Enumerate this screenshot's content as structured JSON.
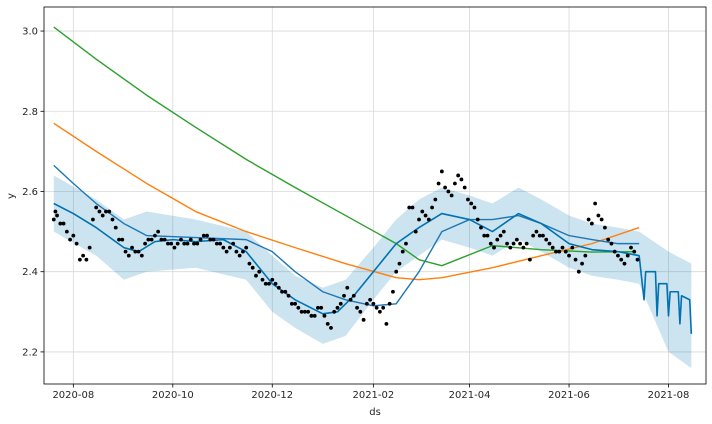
{
  "chart_data": {
    "type": "line",
    "title": "",
    "xlabel": "ds",
    "ylabel": "y",
    "x_range": [
      "2020-07-14",
      "2021-08-24"
    ],
    "ylim": [
      2.12,
      3.06
    ],
    "x_ticks": [
      {
        "date": "2020-08-01",
        "label": "2020-08"
      },
      {
        "date": "2020-10-01",
        "label": "2020-10"
      },
      {
        "date": "2020-12-01",
        "label": "2020-12"
      },
      {
        "date": "2021-02-01",
        "label": "2021-02"
      },
      {
        "date": "2021-04-01",
        "label": "2021-04"
      },
      {
        "date": "2021-06-01",
        "label": "2021-06"
      },
      {
        "date": "2021-08-01",
        "label": "2021-08"
      }
    ],
    "y_ticks": [
      2.2,
      2.4,
      2.6,
      2.8,
      3.0
    ],
    "grid": true,
    "colors": {
      "forecast": "#0072B2",
      "band": "#0072B2",
      "observed": "#000000",
      "orange": "#ff7f0e",
      "green": "#2ca02c",
      "steel": "#1f77b4"
    },
    "series": [
      {
        "key": "green",
        "points": [
          [
            "2020-07-20",
            3.01
          ],
          [
            "2020-08-15",
            2.93
          ],
          [
            "2020-09-15",
            2.84
          ],
          [
            "2020-10-15",
            2.76
          ],
          [
            "2020-11-15",
            2.68
          ],
          [
            "2020-12-15",
            2.61
          ],
          [
            "2021-01-15",
            2.54
          ],
          [
            "2021-02-15",
            2.47
          ],
          [
            "2021-03-01",
            2.43
          ],
          [
            "2021-03-15",
            2.415
          ],
          [
            "2021-04-15",
            2.465
          ],
          [
            "2021-05-15",
            2.455
          ],
          [
            "2021-06-15",
            2.449
          ],
          [
            "2021-07-12",
            2.45
          ]
        ]
      },
      {
        "key": "orange",
        "points": [
          [
            "2020-07-20",
            2.77
          ],
          [
            "2020-08-15",
            2.7
          ],
          [
            "2020-09-15",
            2.62
          ],
          [
            "2020-10-15",
            2.55
          ],
          [
            "2020-11-15",
            2.5
          ],
          [
            "2020-12-15",
            2.46
          ],
          [
            "2021-01-15",
            2.42
          ],
          [
            "2021-02-15",
            2.385
          ],
          [
            "2021-03-01",
            2.38
          ],
          [
            "2021-03-15",
            2.385
          ],
          [
            "2021-04-15",
            2.41
          ],
          [
            "2021-05-15",
            2.44
          ],
          [
            "2021-06-15",
            2.47
          ],
          [
            "2021-07-14",
            2.51
          ]
        ]
      },
      {
        "key": "steel",
        "points": [
          [
            "2020-07-20",
            2.665
          ],
          [
            "2020-08-01",
            2.62
          ],
          [
            "2020-08-15",
            2.57
          ],
          [
            "2020-09-01",
            2.52
          ],
          [
            "2020-09-15",
            2.49
          ],
          [
            "2020-10-15",
            2.485
          ],
          [
            "2020-11-15",
            2.48
          ],
          [
            "2020-12-01",
            2.45
          ],
          [
            "2020-12-15",
            2.4
          ],
          [
            "2021-01-01",
            2.35
          ],
          [
            "2021-01-15",
            2.33
          ],
          [
            "2021-02-01",
            2.315
          ],
          [
            "2021-02-15",
            2.32
          ],
          [
            "2021-03-01",
            2.4
          ],
          [
            "2021-03-15",
            2.5
          ],
          [
            "2021-04-01",
            2.53
          ],
          [
            "2021-04-15",
            2.53
          ],
          [
            "2021-05-01",
            2.54
          ],
          [
            "2021-05-15",
            2.52
          ],
          [
            "2021-06-01",
            2.49
          ],
          [
            "2021-06-15",
            2.48
          ],
          [
            "2021-07-01",
            2.47
          ],
          [
            "2021-07-14",
            2.47
          ]
        ]
      }
    ],
    "forecast": {
      "points": [
        [
          "2020-07-20",
          2.57
        ],
        [
          "2020-08-01",
          2.545
        ],
        [
          "2020-08-15",
          2.51
        ],
        [
          "2020-09-01",
          2.46
        ],
        [
          "2020-09-10",
          2.45
        ],
        [
          "2020-09-20",
          2.475
        ],
        [
          "2020-10-01",
          2.48
        ],
        [
          "2020-10-15",
          2.475
        ],
        [
          "2020-11-01",
          2.48
        ],
        [
          "2020-11-15",
          2.45
        ],
        [
          "2020-12-01",
          2.37
        ],
        [
          "2020-12-15",
          2.33
        ],
        [
          "2021-01-01",
          2.295
        ],
        [
          "2021-01-10",
          2.3
        ],
        [
          "2021-01-20",
          2.34
        ],
        [
          "2021-02-01",
          2.4
        ],
        [
          "2021-02-15",
          2.47
        ],
        [
          "2021-03-01",
          2.51
        ],
        [
          "2021-03-15",
          2.545
        ],
        [
          "2021-04-01",
          2.53
        ],
        [
          "2021-04-15",
          2.5
        ],
        [
          "2021-05-01",
          2.545
        ],
        [
          "2021-05-15",
          2.52
        ],
        [
          "2021-06-01",
          2.47
        ],
        [
          "2021-06-15",
          2.455
        ],
        [
          "2021-07-01",
          2.45
        ],
        [
          "2021-07-14",
          2.44
        ],
        [
          "2021-07-17",
          2.33
        ],
        [
          "2021-07-18",
          2.4
        ],
        [
          "2021-07-24",
          2.4
        ],
        [
          "2021-07-25",
          2.29
        ],
        [
          "2021-07-26",
          2.37
        ],
        [
          "2021-07-31",
          2.37
        ],
        [
          "2021-08-01",
          2.29
        ],
        [
          "2021-08-02",
          2.35
        ],
        [
          "2021-08-07",
          2.35
        ],
        [
          "2021-08-08",
          2.27
        ],
        [
          "2021-08-09",
          2.34
        ],
        [
          "2021-08-14",
          2.33
        ],
        [
          "2021-08-15",
          2.245
        ]
      ]
    },
    "forecast_band": {
      "upper": [
        [
          "2020-07-20",
          2.64
        ],
        [
          "2020-08-15",
          2.58
        ],
        [
          "2020-09-01",
          2.53
        ],
        [
          "2020-09-15",
          2.55
        ],
        [
          "2020-10-15",
          2.53
        ],
        [
          "2020-11-15",
          2.5
        ],
        [
          "2020-12-01",
          2.44
        ],
        [
          "2020-12-15",
          2.39
        ],
        [
          "2021-01-01",
          2.36
        ],
        [
          "2021-01-15",
          2.38
        ],
        [
          "2021-02-01",
          2.46
        ],
        [
          "2021-02-15",
          2.53
        ],
        [
          "2021-03-01",
          2.58
        ],
        [
          "2021-03-15",
          2.61
        ],
        [
          "2021-04-01",
          2.59
        ],
        [
          "2021-04-15",
          2.57
        ],
        [
          "2021-05-01",
          2.61
        ],
        [
          "2021-05-15",
          2.58
        ],
        [
          "2021-06-01",
          2.54
        ],
        [
          "2021-06-15",
          2.52
        ],
        [
          "2021-07-01",
          2.51
        ],
        [
          "2021-07-14",
          2.5
        ],
        [
          "2021-08-01",
          2.45
        ],
        [
          "2021-08-15",
          2.42
        ]
      ],
      "lower": [
        [
          "2020-07-20",
          2.5
        ],
        [
          "2020-08-15",
          2.44
        ],
        [
          "2020-09-01",
          2.38
        ],
        [
          "2020-09-15",
          2.4
        ],
        [
          "2020-10-15",
          2.41
        ],
        [
          "2020-11-15",
          2.38
        ],
        [
          "2020-12-01",
          2.3
        ],
        [
          "2020-12-15",
          2.26
        ],
        [
          "2021-01-01",
          2.22
        ],
        [
          "2021-01-15",
          2.24
        ],
        [
          "2021-02-01",
          2.33
        ],
        [
          "2021-02-15",
          2.4
        ],
        [
          "2021-03-01",
          2.44
        ],
        [
          "2021-03-15",
          2.48
        ],
        [
          "2021-04-01",
          2.46
        ],
        [
          "2021-04-15",
          2.44
        ],
        [
          "2021-05-01",
          2.48
        ],
        [
          "2021-05-15",
          2.45
        ],
        [
          "2021-06-01",
          2.41
        ],
        [
          "2021-06-15",
          2.39
        ],
        [
          "2021-07-01",
          2.38
        ],
        [
          "2021-07-14",
          2.37
        ],
        [
          "2021-08-01",
          2.2
        ],
        [
          "2021-08-15",
          2.16
        ]
      ]
    },
    "observations": [
      [
        "2020-07-20",
        2.53
      ],
      [
        "2020-07-21",
        2.55
      ],
      [
        "2020-07-22",
        2.54
      ],
      [
        "2020-07-24",
        2.52
      ],
      [
        "2020-07-26",
        2.52
      ],
      [
        "2020-07-28",
        2.5
      ],
      [
        "2020-07-30",
        2.48
      ],
      [
        "2020-08-01",
        2.49
      ],
      [
        "2020-08-03",
        2.47
      ],
      [
        "2020-08-05",
        2.43
      ],
      [
        "2020-08-07",
        2.44
      ],
      [
        "2020-08-09",
        2.43
      ],
      [
        "2020-08-11",
        2.46
      ],
      [
        "2020-08-13",
        2.53
      ],
      [
        "2020-08-15",
        2.56
      ],
      [
        "2020-08-17",
        2.55
      ],
      [
        "2020-08-19",
        2.54
      ],
      [
        "2020-08-21",
        2.55
      ],
      [
        "2020-08-23",
        2.55
      ],
      [
        "2020-08-25",
        2.53
      ],
      [
        "2020-08-27",
        2.51
      ],
      [
        "2020-08-29",
        2.48
      ],
      [
        "2020-08-31",
        2.48
      ],
      [
        "2020-09-02",
        2.45
      ],
      [
        "2020-09-04",
        2.44
      ],
      [
        "2020-09-06",
        2.46
      ],
      [
        "2020-09-08",
        2.45
      ],
      [
        "2020-09-10",
        2.45
      ],
      [
        "2020-09-12",
        2.44
      ],
      [
        "2020-09-14",
        2.47
      ],
      [
        "2020-09-16",
        2.48
      ],
      [
        "2020-09-18",
        2.48
      ],
      [
        "2020-09-20",
        2.49
      ],
      [
        "2020-09-22",
        2.5
      ],
      [
        "2020-09-24",
        2.48
      ],
      [
        "2020-09-26",
        2.48
      ],
      [
        "2020-09-28",
        2.47
      ],
      [
        "2020-09-30",
        2.47
      ],
      [
        "2020-10-02",
        2.46
      ],
      [
        "2020-10-04",
        2.47
      ],
      [
        "2020-10-06",
        2.48
      ],
      [
        "2020-10-08",
        2.47
      ],
      [
        "2020-10-10",
        2.47
      ],
      [
        "2020-10-12",
        2.48
      ],
      [
        "2020-10-14",
        2.47
      ],
      [
        "2020-10-16",
        2.47
      ],
      [
        "2020-10-18",
        2.48
      ],
      [
        "2020-10-20",
        2.49
      ],
      [
        "2020-10-22",
        2.49
      ],
      [
        "2020-10-24",
        2.48
      ],
      [
        "2020-10-26",
        2.48
      ],
      [
        "2020-10-28",
        2.47
      ],
      [
        "2020-10-30",
        2.47
      ],
      [
        "2020-11-01",
        2.46
      ],
      [
        "2020-11-03",
        2.45
      ],
      [
        "2020-11-05",
        2.46
      ],
      [
        "2020-11-07",
        2.47
      ],
      [
        "2020-11-09",
        2.45
      ],
      [
        "2020-11-11",
        2.44
      ],
      [
        "2020-11-13",
        2.45
      ],
      [
        "2020-11-15",
        2.46
      ],
      [
        "2020-11-17",
        2.42
      ],
      [
        "2020-11-19",
        2.41
      ],
      [
        "2020-11-21",
        2.39
      ],
      [
        "2020-11-23",
        2.4
      ],
      [
        "2020-11-25",
        2.38
      ],
      [
        "2020-11-27",
        2.37
      ],
      [
        "2020-11-29",
        2.37
      ],
      [
        "2020-12-01",
        2.38
      ],
      [
        "2020-12-03",
        2.37
      ],
      [
        "2020-12-05",
        2.36
      ],
      [
        "2020-12-07",
        2.35
      ],
      [
        "2020-12-09",
        2.35
      ],
      [
        "2020-12-11",
        2.34
      ],
      [
        "2020-12-13",
        2.32
      ],
      [
        "2020-12-15",
        2.32
      ],
      [
        "2020-12-17",
        2.31
      ],
      [
        "2020-12-19",
        2.3
      ],
      [
        "2020-12-21",
        2.3
      ],
      [
        "2020-12-23",
        2.3
      ],
      [
        "2020-12-25",
        2.29
      ],
      [
        "2020-12-27",
        2.29
      ],
      [
        "2020-12-29",
        2.31
      ],
      [
        "2020-12-31",
        2.31
      ],
      [
        "2021-01-02",
        2.29
      ],
      [
        "2021-01-04",
        2.27
      ],
      [
        "2021-01-06",
        2.26
      ],
      [
        "2021-01-08",
        2.3
      ],
      [
        "2021-01-10",
        2.31
      ],
      [
        "2021-01-12",
        2.32
      ],
      [
        "2021-01-14",
        2.34
      ],
      [
        "2021-01-16",
        2.36
      ],
      [
        "2021-01-18",
        2.33
      ],
      [
        "2021-01-20",
        2.34
      ],
      [
        "2021-01-22",
        2.31
      ],
      [
        "2021-01-24",
        2.3
      ],
      [
        "2021-01-26",
        2.28
      ],
      [
        "2021-01-28",
        2.32
      ],
      [
        "2021-01-30",
        2.33
      ],
      [
        "2021-02-01",
        2.32
      ],
      [
        "2021-02-03",
        2.31
      ],
      [
        "2021-02-05",
        2.3
      ],
      [
        "2021-02-07",
        2.31
      ],
      [
        "2021-02-09",
        2.27
      ],
      [
        "2021-02-11",
        2.32
      ],
      [
        "2021-02-13",
        2.35
      ],
      [
        "2021-02-15",
        2.4
      ],
      [
        "2021-02-17",
        2.42
      ],
      [
        "2021-02-19",
        2.45
      ],
      [
        "2021-02-21",
        2.47
      ],
      [
        "2021-02-23",
        2.56
      ],
      [
        "2021-02-25",
        2.56
      ],
      [
        "2021-02-27",
        2.5
      ],
      [
        "2021-03-01",
        2.53
      ],
      [
        "2021-03-03",
        2.55
      ],
      [
        "2021-03-05",
        2.54
      ],
      [
        "2021-03-07",
        2.53
      ],
      [
        "2021-03-09",
        2.56
      ],
      [
        "2021-03-11",
        2.58
      ],
      [
        "2021-03-13",
        2.62
      ],
      [
        "2021-03-15",
        2.65
      ],
      [
        "2021-03-17",
        2.61
      ],
      [
        "2021-03-19",
        2.6
      ],
      [
        "2021-03-21",
        2.59
      ],
      [
        "2021-03-23",
        2.62
      ],
      [
        "2021-03-25",
        2.64
      ],
      [
        "2021-03-27",
        2.63
      ],
      [
        "2021-03-29",
        2.61
      ],
      [
        "2021-03-31",
        2.58
      ],
      [
        "2021-04-02",
        2.57
      ],
      [
        "2021-04-04",
        2.56
      ],
      [
        "2021-04-06",
        2.53
      ],
      [
        "2021-04-08",
        2.51
      ],
      [
        "2021-04-10",
        2.49
      ],
      [
        "2021-04-12",
        2.49
      ],
      [
        "2021-04-14",
        2.47
      ],
      [
        "2021-04-16",
        2.46
      ],
      [
        "2021-04-18",
        2.48
      ],
      [
        "2021-04-20",
        2.49
      ],
      [
        "2021-04-22",
        2.5
      ],
      [
        "2021-04-24",
        2.47
      ],
      [
        "2021-04-26",
        2.46
      ],
      [
        "2021-04-28",
        2.47
      ],
      [
        "2021-04-30",
        2.48
      ],
      [
        "2021-05-02",
        2.47
      ],
      [
        "2021-05-04",
        2.46
      ],
      [
        "2021-05-06",
        2.47
      ],
      [
        "2021-05-08",
        2.43
      ],
      [
        "2021-05-10",
        2.49
      ],
      [
        "2021-05-12",
        2.5
      ],
      [
        "2021-05-14",
        2.49
      ],
      [
        "2021-05-16",
        2.49
      ],
      [
        "2021-05-18",
        2.48
      ],
      [
        "2021-05-20",
        2.47
      ],
      [
        "2021-05-22",
        2.46
      ],
      [
        "2021-05-24",
        2.45
      ],
      [
        "2021-05-26",
        2.45
      ],
      [
        "2021-05-28",
        2.46
      ],
      [
        "2021-05-30",
        2.45
      ],
      [
        "2021-06-01",
        2.44
      ],
      [
        "2021-06-03",
        2.46
      ],
      [
        "2021-06-05",
        2.43
      ],
      [
        "2021-06-07",
        2.4
      ],
      [
        "2021-06-09",
        2.42
      ],
      [
        "2021-06-11",
        2.44
      ],
      [
        "2021-06-13",
        2.53
      ],
      [
        "2021-06-15",
        2.52
      ],
      [
        "2021-06-17",
        2.57
      ],
      [
        "2021-06-19",
        2.54
      ],
      [
        "2021-06-21",
        2.53
      ],
      [
        "2021-06-23",
        2.51
      ],
      [
        "2021-06-25",
        2.48
      ],
      [
        "2021-06-27",
        2.47
      ],
      [
        "2021-06-29",
        2.45
      ],
      [
        "2021-07-01",
        2.44
      ],
      [
        "2021-07-03",
        2.43
      ],
      [
        "2021-07-05",
        2.42
      ],
      [
        "2021-07-07",
        2.44
      ],
      [
        "2021-07-09",
        2.46
      ],
      [
        "2021-07-11",
        2.45
      ],
      [
        "2021-07-13",
        2.43
      ]
    ]
  }
}
